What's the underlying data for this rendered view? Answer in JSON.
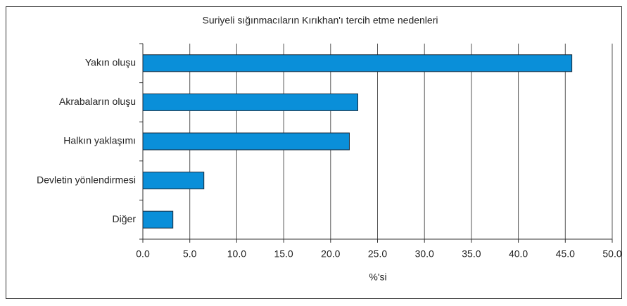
{
  "chart_data": {
    "type": "barh",
    "title": "Suriyeli sığınmacıların Kırıkhan'ı tercih etme nedenleri",
    "categories": [
      "Yakın oluşu",
      "Akrabaların oluşu",
      "Halkın yaklaşımı",
      "Devletin yönlendirmesi",
      "Diğer"
    ],
    "values": [
      45.7,
      22.9,
      22.0,
      6.5,
      3.2
    ],
    "color": "#0a8fd9",
    "xlabel": "%'si",
    "xlim": [
      0,
      50
    ],
    "xticks": [
      {
        "value": 0,
        "label": "0.0"
      },
      {
        "value": 5,
        "label": "5.0"
      },
      {
        "value": 10,
        "label": "10.0"
      },
      {
        "value": 15,
        "label": "15.0"
      },
      {
        "value": 20,
        "label": "20.0"
      },
      {
        "value": 25,
        "label": "25.0"
      },
      {
        "value": 30,
        "label": "30.0"
      },
      {
        "value": 35,
        "label": "35.0"
      },
      {
        "value": 40,
        "label": "40.0"
      },
      {
        "value": 45,
        "label": "45.0"
      },
      {
        "value": 50,
        "label": "50.0"
      }
    ],
    "grid": true
  }
}
